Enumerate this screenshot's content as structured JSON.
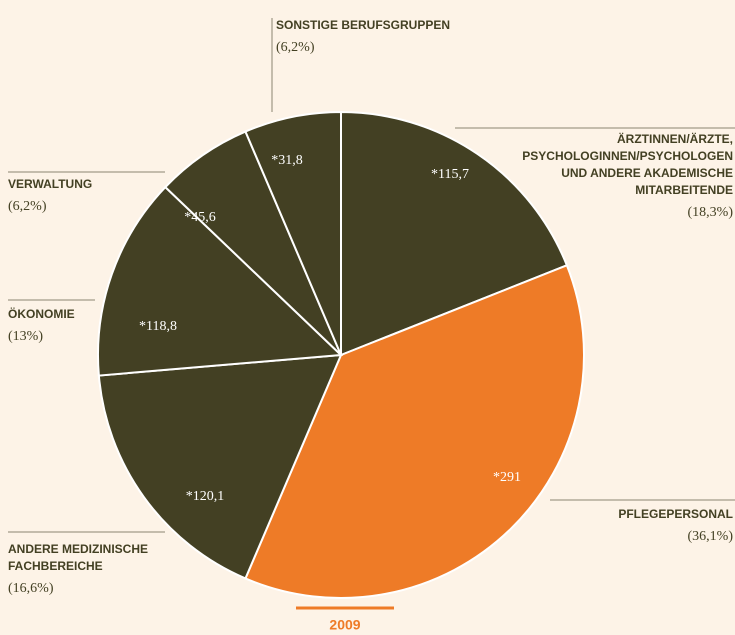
{
  "chart_data": {
    "type": "pie",
    "subtitle": "2009",
    "categories": [
      [
        "ÄRZTINNEN/ÄRZTE,",
        "PSYCHOLOGINNEN/PSYCHOLOGEN",
        "UND ANDERE AKADEMISCHE",
        "MITARBEITENDE"
      ],
      [
        "PFLEGEPERSONAL"
      ],
      [
        "ANDERE MEDIZINISCHE",
        "FACHBEREICHE"
      ],
      [
        "ÖKONOMIE"
      ],
      [
        "VERWALTUNG"
      ],
      [
        "SONSTIGE BERUFSGRUPPEN"
      ]
    ],
    "values": [
      18.3,
      36.1,
      16.6,
      13,
      6.2,
      6.2
    ],
    "value_labels": [
      "(18,3%)",
      "(36,1%)",
      "(16,6%)",
      "(13%)",
      "(6,2%)",
      "(6,2%)"
    ],
    "amounts": [
      115.7,
      291,
      120.1,
      118.8,
      45.6,
      31.8
    ],
    "amount_labels": [
      "*115,7",
      "*291",
      "*120,1",
      "*118,8",
      "*45,6",
      "*31,8"
    ],
    "colors": [
      "#434023",
      "#ee7b27",
      "#434023",
      "#434023",
      "#434023",
      "#434023"
    ],
    "accent_color": "#ee7b27"
  }
}
